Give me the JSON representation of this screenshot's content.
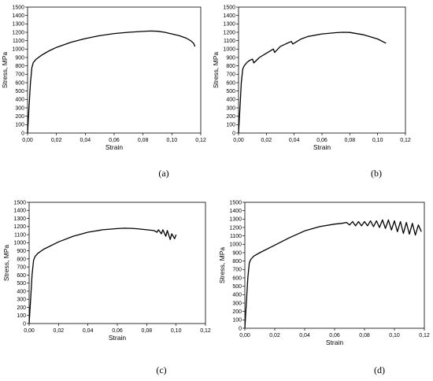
{
  "chart_data": [
    {
      "type": "line",
      "panel_label": "(a)",
      "xlabel": "Strain",
      "ylabel": "Stress, MPa",
      "xlim": [
        0,
        0.12
      ],
      "ylim": [
        0,
        1500
      ],
      "grid": false,
      "x_tick_labels": [
        "0,00",
        "0,02",
        "0,04",
        "0,06",
        "0,08",
        "0,10",
        "0,12"
      ],
      "y_tick_labels": [
        "0",
        "100",
        "200",
        "300",
        "400",
        "500",
        "600",
        "700",
        "800",
        "900",
        "1000",
        "1100",
        "1200",
        "1300",
        "1400",
        "1500"
      ],
      "series": [
        {
          "x": [
            0.0,
            0.001,
            0.002,
            0.003,
            0.004,
            0.006,
            0.01,
            0.015,
            0.02,
            0.03,
            0.04,
            0.05,
            0.06,
            0.07,
            0.08,
            0.085,
            0.09,
            0.095,
            0.1,
            0.105,
            0.11,
            0.113,
            0.115,
            0.116
          ],
          "y": [
            0,
            300,
            600,
            780,
            840,
            880,
            930,
            980,
            1020,
            1080,
            1125,
            1160,
            1185,
            1200,
            1210,
            1215,
            1212,
            1200,
            1180,
            1160,
            1130,
            1100,
            1070,
            1030
          ]
        }
      ]
    },
    {
      "type": "line",
      "panel_label": "(b)",
      "xlabel": "Strain",
      "ylabel": "Stress, MPa",
      "xlim": [
        0,
        0.12
      ],
      "ylim": [
        0,
        1500
      ],
      "grid": false,
      "x_tick_labels": [
        "0,00",
        "0,02",
        "0,04",
        "0,06",
        "0,08",
        "0,10",
        "0,12"
      ],
      "y_tick_labels": [
        "0",
        "100",
        "200",
        "300",
        "400",
        "500",
        "600",
        "700",
        "800",
        "900",
        "1000",
        "1100",
        "1200",
        "1300",
        "1400",
        "1500"
      ],
      "series": [
        {
          "x": [
            0.0,
            0.001,
            0.002,
            0.003,
            0.004,
            0.006,
            0.008,
            0.01,
            0.011,
            0.015,
            0.02,
            0.025,
            0.026,
            0.03,
            0.035,
            0.038,
            0.039,
            0.045,
            0.05,
            0.06,
            0.07,
            0.075,
            0.08,
            0.09,
            0.1,
            0.106
          ],
          "y": [
            0,
            300,
            600,
            760,
            800,
            840,
            865,
            880,
            835,
            900,
            950,
            1000,
            960,
            1030,
            1070,
            1090,
            1060,
            1120,
            1150,
            1180,
            1195,
            1200,
            1198,
            1170,
            1120,
            1070
          ]
        }
      ]
    },
    {
      "type": "line",
      "panel_label": "(c)",
      "xlabel": "Strain",
      "ylabel": "Stress, MPa",
      "xlim": [
        0,
        0.12
      ],
      "ylim": [
        0,
        1500
      ],
      "grid": false,
      "x_tick_labels": [
        "0,00",
        "0,02",
        "0,04",
        "0,06",
        "0,08",
        "0,10",
        "0,12"
      ],
      "y_tick_labels": [
        "0",
        "100",
        "200",
        "300",
        "400",
        "500",
        "600",
        "700",
        "800",
        "900",
        "1000",
        "1100",
        "1200",
        "1300",
        "1400",
        "1500"
      ],
      "series": [
        {
          "x": [
            0.0,
            0.001,
            0.002,
            0.003,
            0.004,
            0.006,
            0.01,
            0.02,
            0.03,
            0.04,
            0.05,
            0.06,
            0.065,
            0.07,
            0.075,
            0.08,
            0.085,
            0.087,
            0.088,
            0.09,
            0.091,
            0.093,
            0.094,
            0.096,
            0.097,
            0.099,
            0.1
          ],
          "y": [
            0,
            300,
            600,
            780,
            830,
            870,
            920,
            1010,
            1080,
            1130,
            1160,
            1175,
            1180,
            1178,
            1170,
            1160,
            1150,
            1130,
            1160,
            1110,
            1160,
            1080,
            1150,
            1040,
            1110,
            1050,
            1100
          ]
        }
      ]
    },
    {
      "type": "line",
      "panel_label": "(d)",
      "xlabel": "Strain",
      "ylabel": "Stress, MPa",
      "xlim": [
        0,
        0.12
      ],
      "ylim": [
        0,
        1500
      ],
      "grid": false,
      "x_tick_labels": [
        "0,00",
        "0,02",
        "0,04",
        "0,06",
        "0,08",
        "0,10",
        "0,12"
      ],
      "y_tick_labels": [
        "0",
        "100",
        "200",
        "300",
        "400",
        "500",
        "600",
        "700",
        "800",
        "900",
        "1000",
        "1100",
        "1200",
        "1300",
        "1400",
        "1500"
      ],
      "series": [
        {
          "x": [
            0.0,
            0.001,
            0.002,
            0.003,
            0.004,
            0.006,
            0.01,
            0.02,
            0.03,
            0.04,
            0.05,
            0.06,
            0.065,
            0.068,
            0.07,
            0.072,
            0.074,
            0.076,
            0.078,
            0.08,
            0.082,
            0.084,
            0.086,
            0.088,
            0.09,
            0.092,
            0.094,
            0.096,
            0.098,
            0.1,
            0.102,
            0.104,
            0.106,
            0.108,
            0.11,
            0.112,
            0.114,
            0.116,
            0.118
          ],
          "y": [
            0,
            300,
            600,
            780,
            820,
            860,
            900,
            990,
            1080,
            1160,
            1210,
            1240,
            1250,
            1260,
            1230,
            1270,
            1220,
            1270,
            1220,
            1270,
            1220,
            1280,
            1210,
            1280,
            1200,
            1290,
            1190,
            1290,
            1170,
            1280,
            1150,
            1270,
            1130,
            1260,
            1120,
            1250,
            1110,
            1230,
            1150
          ]
        }
      ]
    }
  ]
}
